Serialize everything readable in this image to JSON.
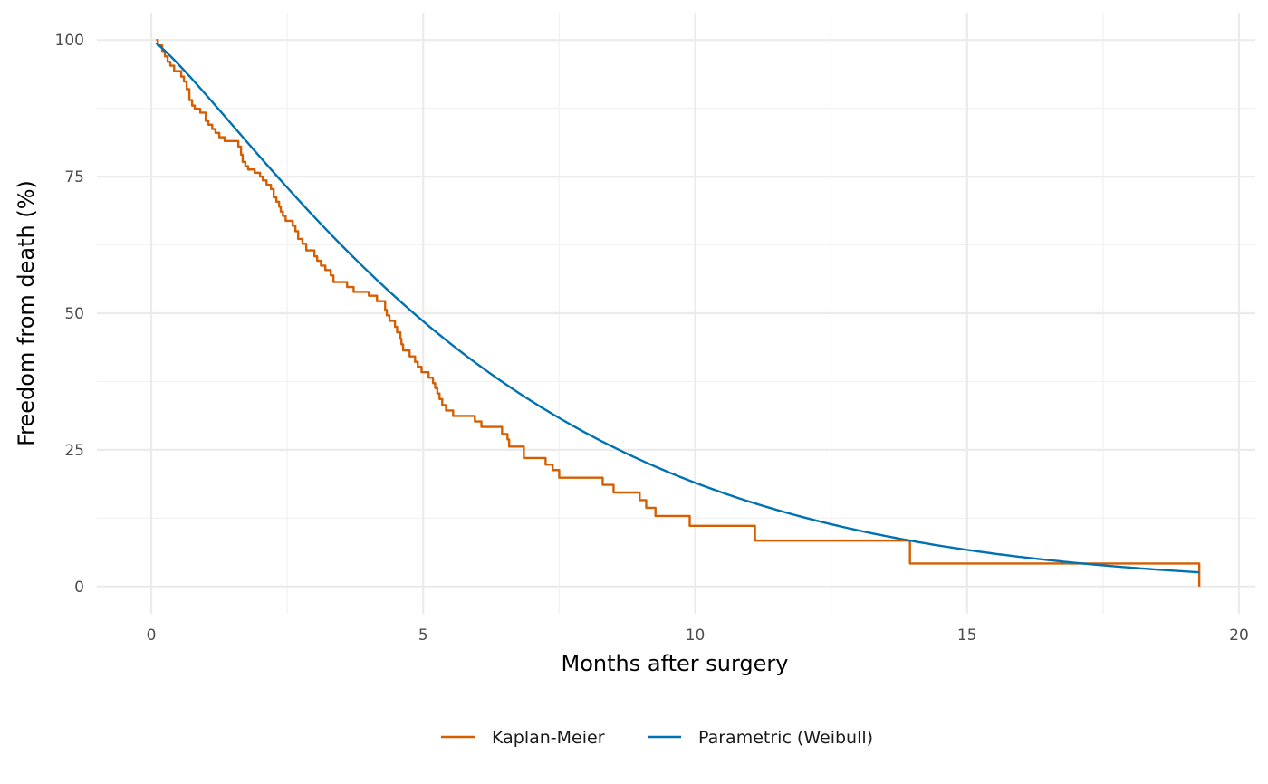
{
  "chart_data": {
    "type": "line",
    "title": "",
    "xlabel": "Months after surgery",
    "ylabel": "Freedom from death (%)",
    "xlim": [
      -1.0,
      20.3
    ],
    "ylim": [
      -5,
      105
    ],
    "x_ticks": [
      0,
      5,
      10,
      15,
      20
    ],
    "y_ticks": [
      0,
      25,
      50,
      75,
      100
    ],
    "x_minor": [
      2.5,
      7.5,
      12.5,
      17.5
    ],
    "y_minor": [
      12.5,
      37.5,
      62.5,
      87.5
    ],
    "grid": true,
    "legend_position": "bottom",
    "series": [
      {
        "name": "Kaplan-Meier",
        "color": "#D55E00",
        "style": "step",
        "points": [
          [
            0.09,
            100
          ],
          [
            0.12,
            99
          ],
          [
            0.2,
            98
          ],
          [
            0.25,
            97
          ],
          [
            0.3,
            96
          ],
          [
            0.35,
            95.3
          ],
          [
            0.42,
            94.3
          ],
          [
            0.55,
            93.3
          ],
          [
            0.6,
            92.4
          ],
          [
            0.65,
            91
          ],
          [
            0.7,
            89
          ],
          [
            0.75,
            88
          ],
          [
            0.8,
            87.4
          ],
          [
            0.9,
            86.7
          ],
          [
            1.0,
            85.2
          ],
          [
            1.05,
            84.5
          ],
          [
            1.12,
            83.7
          ],
          [
            1.18,
            83.0
          ],
          [
            1.25,
            82.2
          ],
          [
            1.35,
            81.5
          ],
          [
            1.6,
            80.5
          ],
          [
            1.65,
            79.0
          ],
          [
            1.68,
            77.7
          ],
          [
            1.73,
            76.9
          ],
          [
            1.78,
            76.3
          ],
          [
            1.9,
            75.7
          ],
          [
            2.0,
            75.0
          ],
          [
            2.05,
            74.3
          ],
          [
            2.12,
            73.5
          ],
          [
            2.2,
            72.7
          ],
          [
            2.25,
            71.2
          ],
          [
            2.3,
            70.4
          ],
          [
            2.35,
            69.5
          ],
          [
            2.38,
            68.6
          ],
          [
            2.42,
            67.8
          ],
          [
            2.47,
            66.9
          ],
          [
            2.6,
            66.0
          ],
          [
            2.65,
            65.0
          ],
          [
            2.7,
            63.6
          ],
          [
            2.78,
            62.7
          ],
          [
            2.85,
            61.5
          ],
          [
            3.0,
            60.4
          ],
          [
            3.05,
            59.6
          ],
          [
            3.12,
            58.7
          ],
          [
            3.2,
            57.9
          ],
          [
            3.3,
            56.9
          ],
          [
            3.35,
            55.7
          ],
          [
            3.6,
            54.8
          ],
          [
            3.72,
            53.9
          ],
          [
            4.0,
            53.2
          ],
          [
            4.15,
            52.2
          ],
          [
            4.3,
            50.6
          ],
          [
            4.33,
            49.6
          ],
          [
            4.38,
            48.6
          ],
          [
            4.48,
            47.5
          ],
          [
            4.52,
            46.5
          ],
          [
            4.58,
            45.3
          ],
          [
            4.6,
            44.3
          ],
          [
            4.63,
            43.2
          ],
          [
            4.75,
            42.1
          ],
          [
            4.85,
            41.1
          ],
          [
            4.9,
            40.2
          ],
          [
            4.97,
            39.2
          ],
          [
            5.1,
            38.2
          ],
          [
            5.18,
            37.2
          ],
          [
            5.22,
            36.3
          ],
          [
            5.26,
            35.3
          ],
          [
            5.3,
            34.3
          ],
          [
            5.35,
            33.2
          ],
          [
            5.42,
            32.2
          ],
          [
            5.55,
            31.2
          ],
          [
            5.95,
            30.2
          ],
          [
            6.07,
            29.2
          ],
          [
            6.45,
            27.9
          ],
          [
            6.55,
            26.9
          ],
          [
            6.58,
            25.6
          ],
          [
            6.85,
            23.5
          ],
          [
            7.25,
            22.3
          ],
          [
            7.38,
            21.3
          ],
          [
            7.5,
            19.9
          ],
          [
            8.3,
            18.6
          ],
          [
            8.5,
            17.2
          ],
          [
            8.98,
            15.8
          ],
          [
            9.1,
            14.4
          ],
          [
            9.27,
            12.9
          ],
          [
            9.9,
            11.1
          ],
          [
            11.1,
            8.4
          ],
          [
            13.95,
            4.2
          ],
          [
            19.27,
            0
          ]
        ]
      },
      {
        "name": "Parametric (Weibull)",
        "color": "#0072B2",
        "style": "line",
        "model": {
          "lambda_months": 6.55,
          "shape_k": 1.2,
          "x_start": 0.09,
          "x_end": 19.27
        }
      }
    ]
  }
}
